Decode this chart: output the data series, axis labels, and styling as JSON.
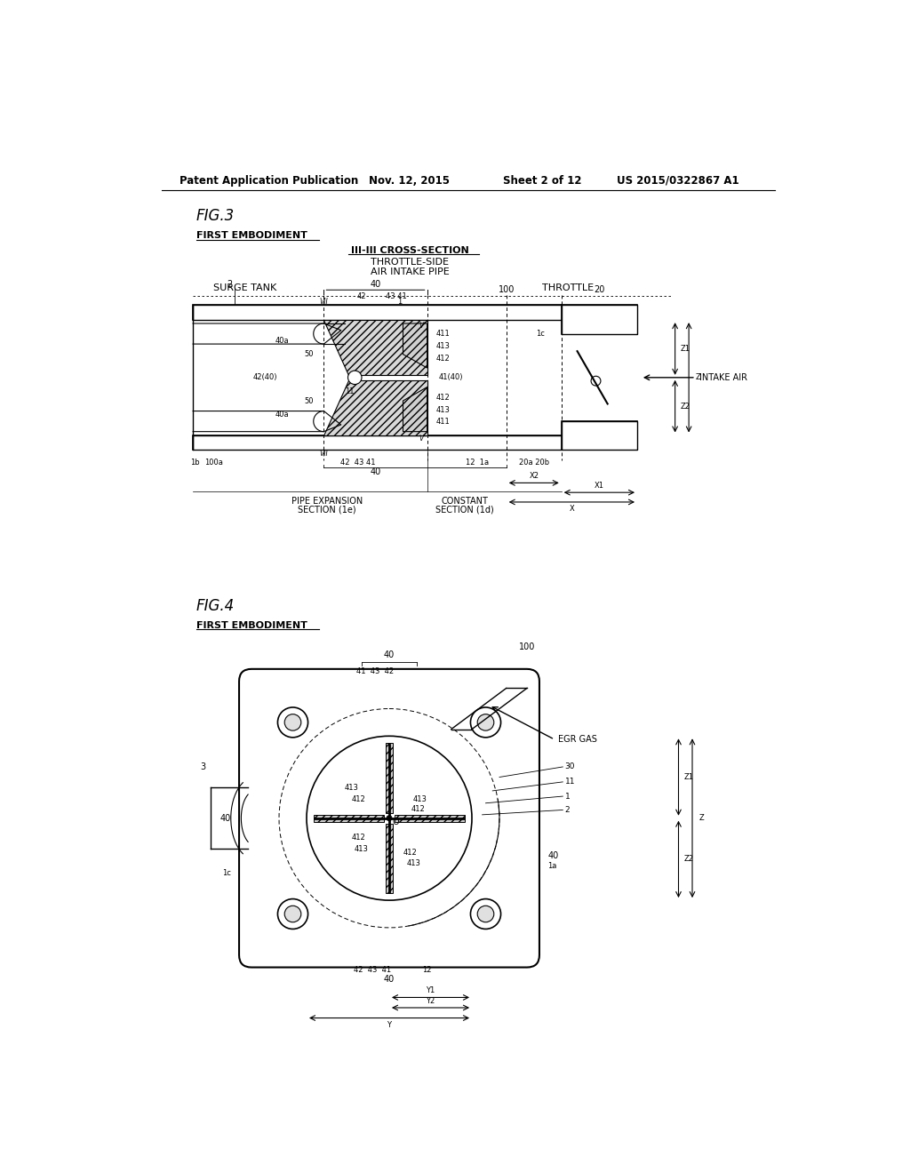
{
  "bg_color": "#ffffff",
  "header_text": "Patent Application Publication",
  "header_date": "Nov. 12, 2015",
  "header_sheet": "Sheet 2 of 12",
  "header_patent": "US 2015/0322867 A1"
}
